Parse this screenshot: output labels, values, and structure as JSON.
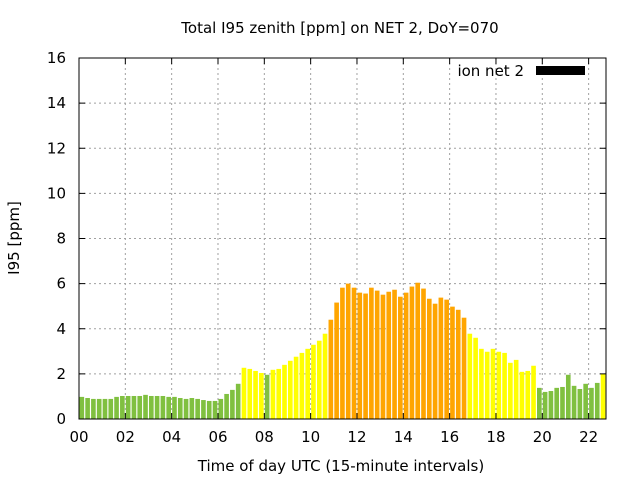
{
  "chart_data": {
    "type": "bar",
    "title": "Total I95 zenith [ppm] on NET 2, DoY=070",
    "xlabel": "Time of day UTC (15-minute intervals)",
    "ylabel": "I95 [ppm]",
    "xlim": [
      0,
      22.75
    ],
    "ylim": [
      0,
      16
    ],
    "grid": true,
    "legend": {
      "label": "ion net 2",
      "placement": "top-right",
      "color": "#000000"
    },
    "x_ticks": [
      0,
      2,
      4,
      6,
      8,
      10,
      12,
      14,
      16,
      18,
      20,
      22
    ],
    "x_tick_labels": [
      "00",
      "02",
      "04",
      "06",
      "08",
      "10",
      "12",
      "14",
      "16",
      "18",
      "20",
      "22"
    ],
    "y_ticks": [
      0,
      2,
      4,
      6,
      8,
      10,
      12,
      14,
      16
    ],
    "y_tick_labels": [
      "0",
      "2",
      "4",
      "6",
      "8",
      "10",
      "12",
      "14",
      "16"
    ],
    "interval_hours": 0.25,
    "color_thresholds": [
      {
        "max": 2,
        "color": "#80c040"
      },
      {
        "max": 4,
        "color": "#ffff00"
      },
      {
        "max": 99,
        "color": "#ffa500"
      }
    ],
    "values": [
      0.98,
      0.93,
      0.89,
      0.89,
      0.89,
      0.89,
      0.98,
      1.02,
      1.02,
      1.02,
      1.02,
      1.07,
      1.02,
      1.02,
      1.02,
      0.98,
      0.98,
      0.93,
      0.89,
      0.93,
      0.89,
      0.84,
      0.8,
      0.8,
      0.89,
      1.11,
      1.29,
      1.56,
      2.27,
      2.22,
      2.13,
      2.04,
      1.96,
      2.18,
      2.22,
      2.4,
      2.58,
      2.76,
      2.93,
      3.11,
      3.29,
      3.47,
      3.78,
      4.4,
      5.16,
      5.82,
      6.0,
      5.82,
      5.6,
      5.56,
      5.82,
      5.69,
      5.51,
      5.64,
      5.73,
      5.42,
      5.6,
      5.87,
      6.04,
      5.78,
      5.33,
      5.11,
      5.38,
      5.29,
      4.98,
      4.84,
      4.49,
      3.78,
      3.6,
      3.11,
      2.98,
      3.11,
      2.98,
      2.93,
      2.49,
      2.62,
      2.09,
      2.13,
      2.36,
      1.38,
      1.2,
      1.24,
      1.38,
      1.42,
      1.96,
      1.47,
      1.33,
      1.56,
      1.38,
      1.6,
      2.0,
      1.6
    ]
  }
}
